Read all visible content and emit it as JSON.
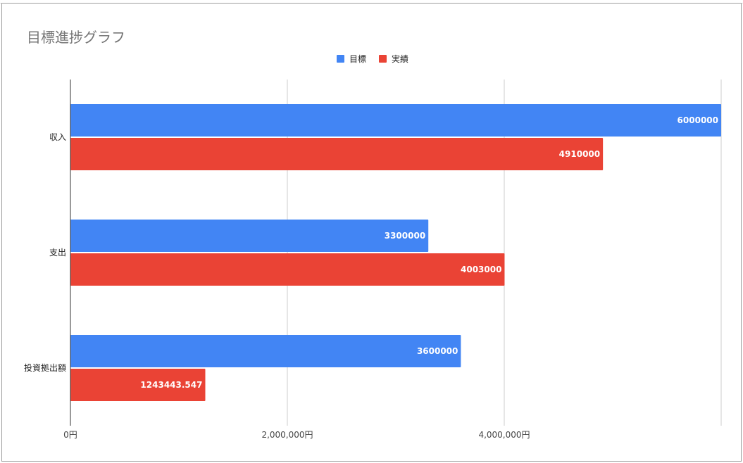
{
  "chart_data": {
    "type": "bar",
    "orientation": "horizontal",
    "title": "目標進捗グラフ",
    "categories": [
      "収入",
      "支出",
      "投資拠出額"
    ],
    "series": [
      {
        "name": "目標",
        "color": "#4285f4",
        "values": [
          6000000,
          3300000,
          3600000
        ],
        "labels": [
          "6000000",
          "3300000",
          "3600000"
        ]
      },
      {
        "name": "実績",
        "color": "#ea4335",
        "values": [
          4910000,
          4003000,
          1243443.547
        ],
        "labels": [
          "4910000",
          "4003000",
          "1243443.547"
        ]
      }
    ],
    "xlim": [
      0,
      6000000
    ],
    "xticks": [
      {
        "value": 0,
        "label": "0円"
      },
      {
        "value": 2000000,
        "label": "2,000,000円"
      },
      {
        "value": 4000000,
        "label": "4,000,000円"
      },
      {
        "value": 6000000,
        "label": ""
      }
    ],
    "legend_position": "top",
    "grid": true
  }
}
